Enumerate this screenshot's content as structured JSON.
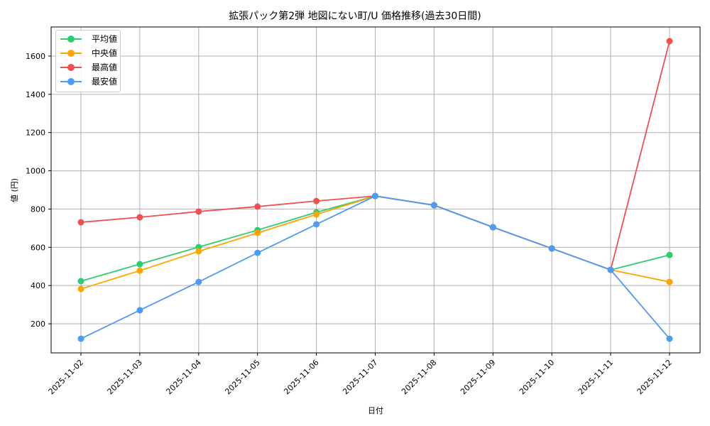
{
  "chart_data": {
    "type": "line",
    "title": "拡張パック第2弾 地図にない町/U 価格推移(過去30日間)",
    "xlabel": "日付",
    "ylabel": "値 (円)",
    "x": [
      "2025-11-02",
      "2025-11-03",
      "2025-11-04",
      "2025-11-05",
      "2025-11-06",
      "2025-11-07",
      "2025-11-08",
      "2025-11-09",
      "2025-11-10",
      "2025-11-11",
      "2025-11-12"
    ],
    "yticks": [
      200,
      400,
      600,
      800,
      1000,
      1200,
      1400,
      1600
    ],
    "ylim": [
      48,
      1752
    ],
    "grid": true,
    "legend_position": "upper left",
    "series": [
      {
        "name": "平均値",
        "color": "#2ecc71",
        "values": [
          423,
          512,
          601,
          690,
          783,
          868,
          820,
          705,
          594,
          482,
          560
        ]
      },
      {
        "name": "中央値",
        "color": "#ffa500",
        "values": [
          382,
          478,
          579,
          675,
          772,
          868,
          820,
          705,
          594,
          482,
          419
        ]
      },
      {
        "name": "最高値",
        "color": "#f05050",
        "values": [
          731,
          757,
          787,
          813,
          842,
          868,
          820,
          705,
          594,
          482,
          1678
        ]
      },
      {
        "name": "最安値",
        "color": "#4d9bf5",
        "values": [
          122,
          271,
          419,
          571,
          720,
          868,
          820,
          705,
          594,
          482,
          122
        ]
      }
    ]
  }
}
